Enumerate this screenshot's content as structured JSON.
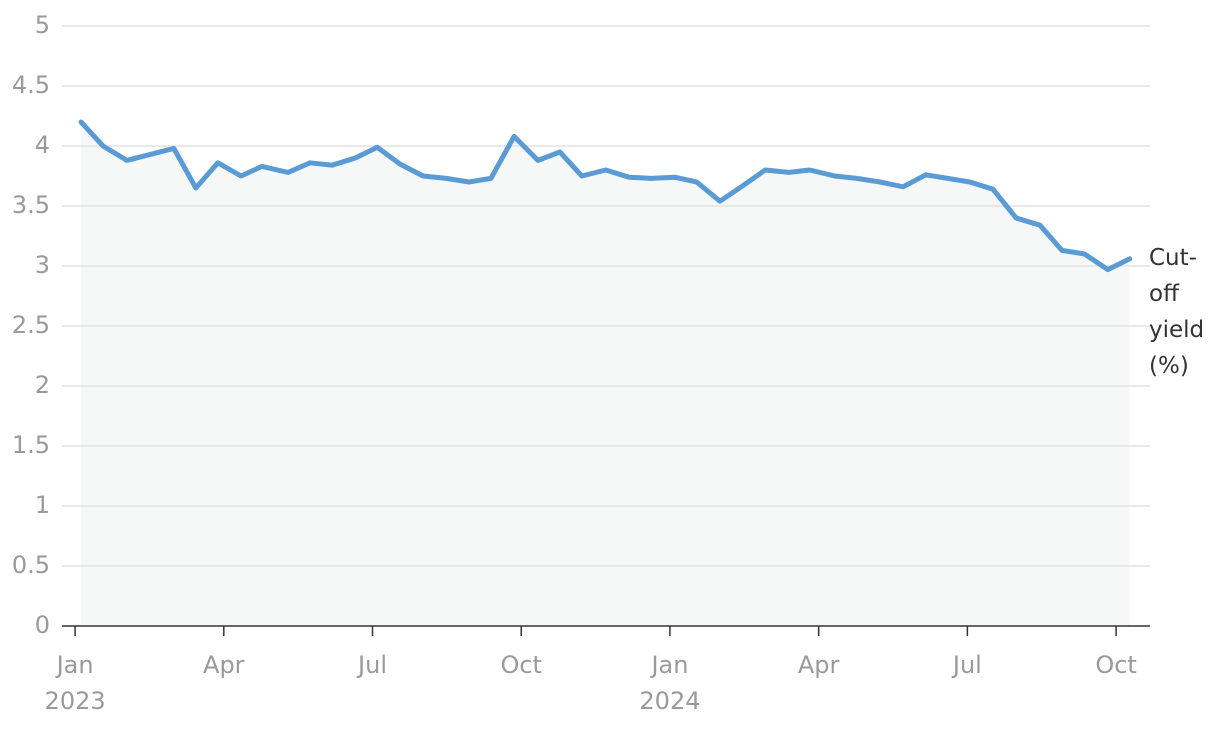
{
  "chart_data": {
    "type": "line",
    "series": [
      {
        "name": "Cut-off yield (%)",
        "color": "#5b9bd5",
        "x": [
          2023.01,
          2023.047,
          2023.087,
          2023.166,
          2023.203,
          2023.24,
          2023.279,
          2023.314,
          2023.358,
          2023.395,
          2023.432,
          2023.471,
          2023.508,
          2023.546,
          2023.585,
          2023.624,
          2023.662,
          2023.699,
          2023.738,
          2023.778,
          2023.815,
          2023.852,
          2023.892,
          2023.931,
          2023.968,
          2024.008,
          2024.045,
          2024.084,
          2024.123,
          2024.16,
          2024.2,
          2024.235,
          2024.277,
          2024.314,
          2024.353,
          2024.392,
          2024.43,
          2024.467,
          2024.504,
          2024.543,
          2024.582,
          2024.622,
          2024.659,
          2024.697,
          2024.736,
          2024.773
        ],
        "values": [
          4.2,
          4.0,
          3.88,
          3.98,
          3.65,
          3.86,
          3.75,
          3.83,
          3.78,
          3.86,
          3.84,
          3.9,
          3.99,
          3.85,
          3.75,
          3.73,
          3.7,
          3.73,
          4.08,
          3.88,
          3.95,
          3.75,
          3.8,
          3.74,
          3.73,
          3.74,
          3.7,
          3.54,
          3.67,
          3.8,
          3.78,
          3.8,
          3.75,
          3.73,
          3.7,
          3.66,
          3.76,
          3.73,
          3.7,
          3.64,
          3.4,
          3.34,
          3.13,
          3.1,
          2.97,
          3.06
        ]
      }
    ],
    "xlim": [
      2022.978,
      2024.807
    ],
    "xticks": [
      {
        "value": 2023,
        "label": "Jan"
      },
      {
        "value": 2023.25,
        "label": "Apr"
      },
      {
        "value": 2023.5,
        "label": "Jul"
      },
      {
        "value": 2023.75,
        "label": "Oct"
      },
      {
        "value": 2024,
        "label": "Jan"
      },
      {
        "value": 2024.25,
        "label": "Apr"
      },
      {
        "value": 2024.5,
        "label": "Jul"
      },
      {
        "value": 2024.75,
        "label": "Oct"
      }
    ],
    "x_year_labels": [
      {
        "value": 2023,
        "label": "2023"
      },
      {
        "value": 2024,
        "label": "2024"
      }
    ],
    "ylim": [
      0,
      5
    ],
    "yticks": [
      0,
      0.5,
      1,
      1.5,
      2,
      2.5,
      3,
      3.5,
      4,
      4.5,
      5
    ],
    "grid": true,
    "area_fill": "#f6f8f8"
  }
}
